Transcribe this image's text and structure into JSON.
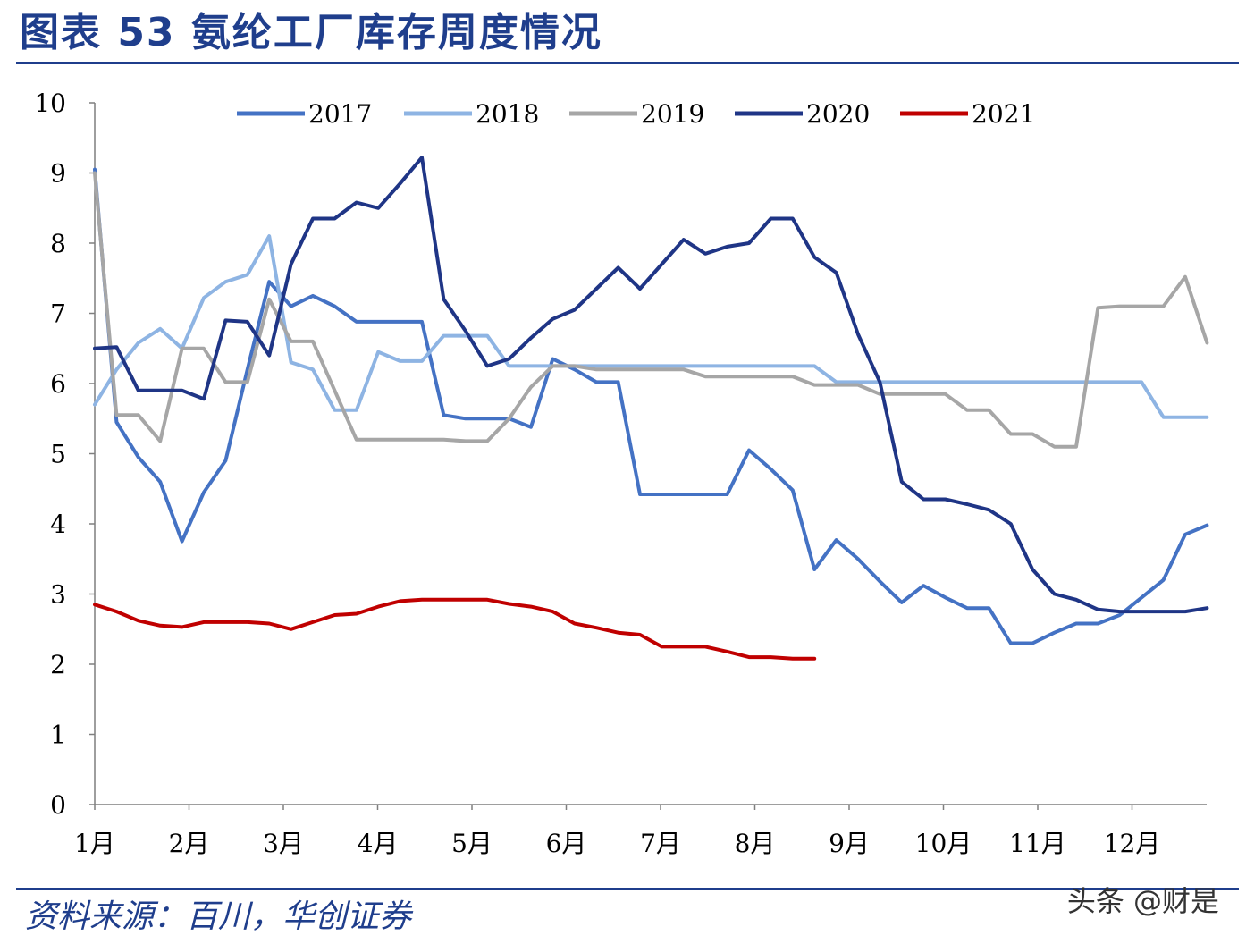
{
  "header": {
    "title": "图表 53  氨纶工厂库存周度情况"
  },
  "footer": {
    "source": "资料来源：百川，华创证券",
    "watermark": "头条 @财是"
  },
  "colors": {
    "2017": "#4472c4",
    "2018": "#8eb4e3",
    "2019": "#a6a6a6",
    "2020": "#1f3586",
    "2021": "#c00000",
    "brand": "#1f3e8c"
  },
  "chart_data": {
    "type": "line",
    "title": "",
    "xlabel": "",
    "ylabel": "",
    "ylim": [
      0,
      10
    ],
    "yticks": [
      "0",
      "1",
      "2",
      "3",
      "4",
      "5",
      "6",
      "7",
      "8",
      "9",
      "10"
    ],
    "month_labels": [
      "1月",
      "2月",
      "3月",
      "4月",
      "5月",
      "6月",
      "7月",
      "8月",
      "9月",
      "10月",
      "11月",
      "12月"
    ],
    "x_unit": "week",
    "legend_position": "top",
    "grid": false,
    "series": [
      {
        "name": "2017",
        "values": [
          9.05,
          5.45,
          4.95,
          4.6,
          3.75,
          4.45,
          4.9,
          6.2,
          7.45,
          7.1,
          7.25,
          7.1,
          6.88,
          6.88,
          6.88,
          6.88,
          5.55,
          5.5,
          5.5,
          5.5,
          5.38,
          6.35,
          6.2,
          6.02,
          6.02,
          4.42,
          4.42,
          4.42,
          4.42,
          4.42,
          5.05,
          4.78,
          4.48,
          3.35,
          3.77,
          3.5,
          3.18,
          2.88,
          3.12,
          2.95,
          2.8,
          2.8,
          2.3,
          2.3,
          2.45,
          2.58,
          2.58,
          2.7,
          2.95,
          3.2,
          3.85,
          3.98
        ]
      },
      {
        "name": "2018",
        "values": [
          5.7,
          6.2,
          6.58,
          6.78,
          6.5,
          7.22,
          7.45,
          7.55,
          8.1,
          6.3,
          6.2,
          5.62,
          5.62,
          6.45,
          6.32,
          6.32,
          6.68,
          6.68,
          6.68,
          6.25,
          6.25,
          6.25,
          6.25,
          6.25,
          6.25,
          6.25,
          6.25,
          6.25,
          6.25,
          6.25,
          6.25,
          6.25,
          6.25,
          6.25,
          6.02,
          6.02,
          6.02,
          6.02,
          6.02,
          6.02,
          6.02,
          6.02,
          6.02,
          6.02,
          6.02,
          6.02,
          6.02,
          6.02,
          6.02,
          5.52,
          5.52,
          5.52
        ]
      },
      {
        "name": "2019",
        "values": [
          9.0,
          5.55,
          5.55,
          5.18,
          6.5,
          6.5,
          6.02,
          6.02,
          7.2,
          6.6,
          6.6,
          5.9,
          5.2,
          5.2,
          5.2,
          5.2,
          5.2,
          5.18,
          5.18,
          5.5,
          5.95,
          6.25,
          6.25,
          6.2,
          6.2,
          6.2,
          6.2,
          6.2,
          6.1,
          6.1,
          6.1,
          6.1,
          6.1,
          5.98,
          5.98,
          5.98,
          5.85,
          5.85,
          5.85,
          5.85,
          5.62,
          5.62,
          5.28,
          5.28,
          5.1,
          5.1,
          7.08,
          7.1,
          7.1,
          7.1,
          7.52,
          6.58
        ]
      },
      {
        "name": "2020",
        "values": [
          6.5,
          6.52,
          5.9,
          5.9,
          5.9,
          5.78,
          6.9,
          6.88,
          6.4,
          7.7,
          8.35,
          8.35,
          8.58,
          8.5,
          8.85,
          9.22,
          7.2,
          6.75,
          6.25,
          6.35,
          6.65,
          6.92,
          7.05,
          7.35,
          7.65,
          7.35,
          7.7,
          8.05,
          7.85,
          7.95,
          8.0,
          8.35,
          8.35,
          7.8,
          7.58,
          6.7,
          6.02,
          4.6,
          4.35,
          4.35,
          4.28,
          4.2,
          4.0,
          3.35,
          3.0,
          2.92,
          2.78,
          2.75,
          2.75,
          2.75,
          2.75,
          2.8
        ]
      },
      {
        "name": "2021",
        "values": [
          2.85,
          2.75,
          2.62,
          2.55,
          2.53,
          2.6,
          2.6,
          2.6,
          2.58,
          2.5,
          2.6,
          2.7,
          2.72,
          2.82,
          2.9,
          2.92,
          2.92,
          2.92,
          2.92,
          2.86,
          2.82,
          2.75,
          2.58,
          2.52,
          2.45,
          2.42,
          2.25,
          2.25,
          2.25,
          2.18,
          2.1,
          2.1,
          2.08,
          2.08
        ]
      }
    ]
  }
}
